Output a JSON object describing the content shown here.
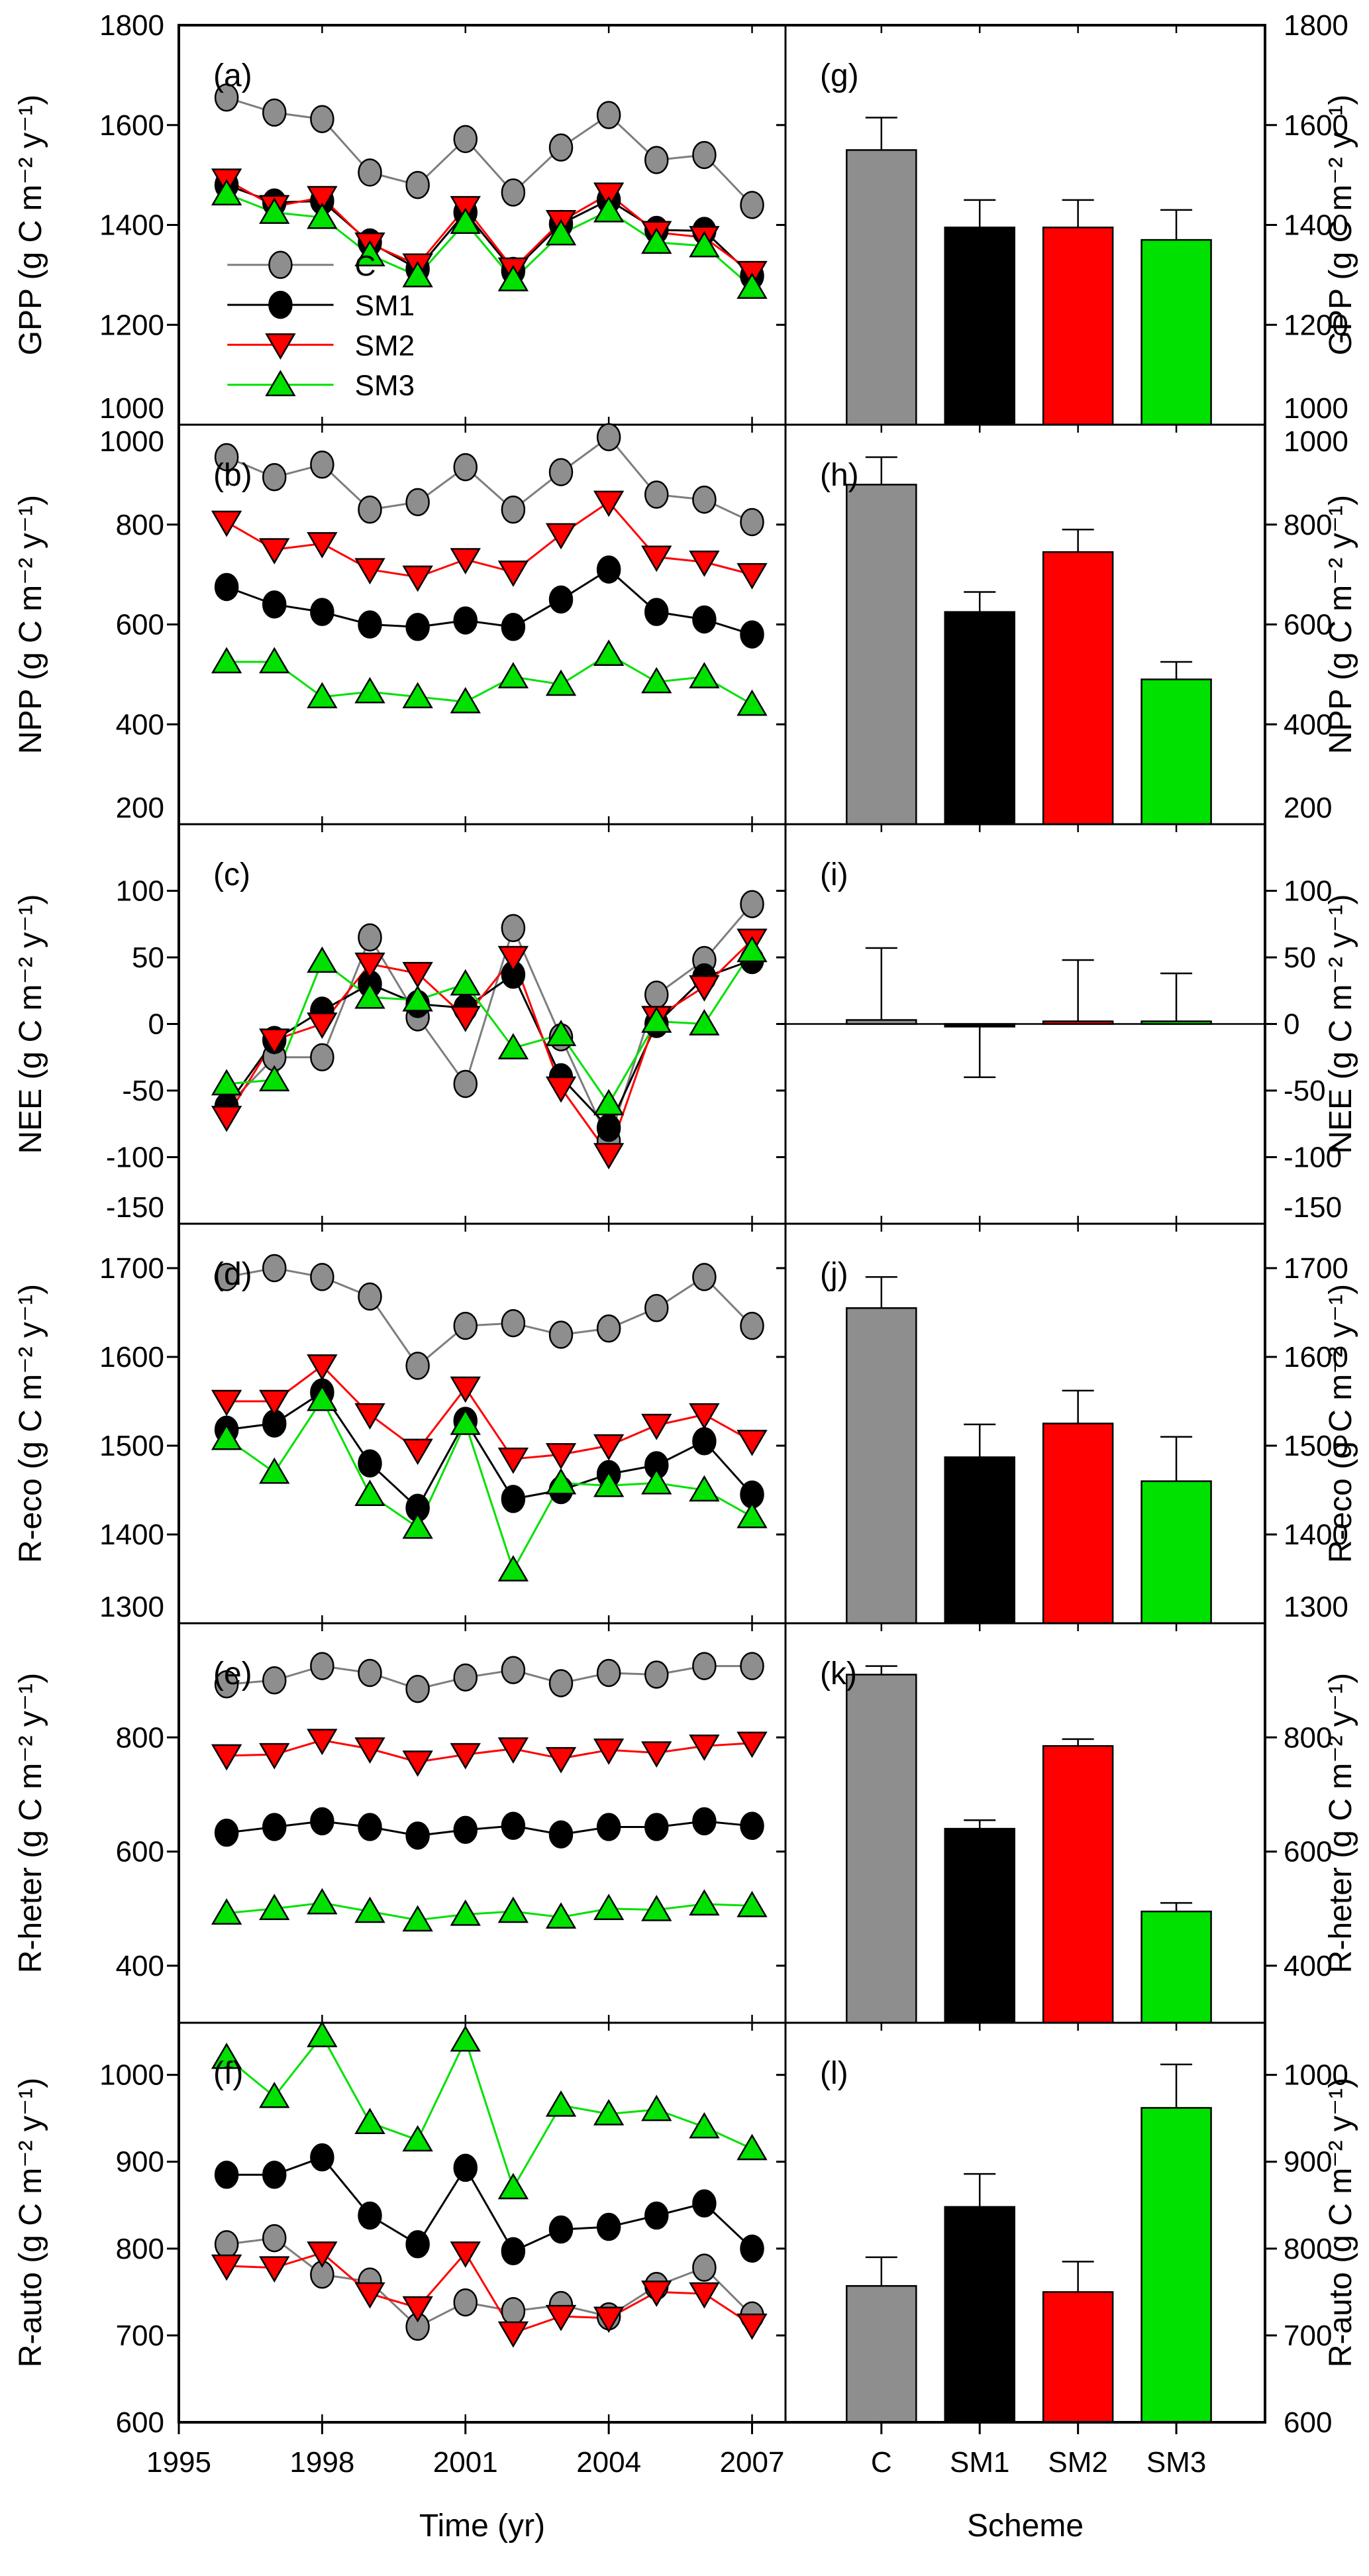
{
  "figure": {
    "description": "Six-variable carbon flux comparison: yearly time series (left column) and scheme means with error bars (right column)",
    "x_axis_label": "Time (yr)",
    "bar_axis_label": "Scheme",
    "legend": [
      "C",
      "SM1",
      "SM2",
      "SM3"
    ]
  },
  "chart_data": {
    "type": "multi-panel",
    "years": [
      1996,
      1997,
      1998,
      1999,
      2000,
      2001,
      2002,
      2003,
      2004,
      2005,
      2006,
      2007
    ],
    "x_ticks": [
      1995,
      1998,
      2001,
      2004,
      2007
    ],
    "x_range": [
      1995,
      2007.7
    ],
    "xlabel": "Time (yr)",
    "bar_xlabel": "Scheme",
    "categories": [
      "C",
      "SM1",
      "SM2",
      "SM3"
    ],
    "series_meta": [
      {
        "name": "C",
        "marker": "circle",
        "fill": "#8e8e8e",
        "line": "#7d7d7d"
      },
      {
        "name": "SM1",
        "marker": "circle",
        "fill": "#000000",
        "line": "#000000"
      },
      {
        "name": "SM2",
        "marker": "triangle-down",
        "fill": "#ff0000",
        "line": "#ff0000"
      },
      {
        "name": "SM3",
        "marker": "triangle-up",
        "fill": "#00e100",
        "line": "#00e100"
      }
    ],
    "legend_in_panel": 0,
    "rows": [
      {
        "id": "GPP",
        "letter_line": "(a)",
        "letter_bar": "(g)",
        "ylabel": "GPP (g C m⁻² y⁻¹)",
        "ylim": [
          1000,
          1800
        ],
        "yticks": [
          1000,
          1200,
          1400,
          1600,
          1800
        ],
        "series": {
          "C": [
            1655,
            1625,
            1612,
            1505,
            1480,
            1572,
            1465,
            1555,
            1620,
            1530,
            1540,
            1440
          ],
          "SM1": [
            1480,
            1445,
            1448,
            1365,
            1312,
            1425,
            1308,
            1402,
            1450,
            1390,
            1388,
            1298
          ],
          "SM2": [
            1490,
            1437,
            1455,
            1362,
            1320,
            1435,
            1312,
            1407,
            1462,
            1385,
            1375,
            1305
          ],
          "SM3": [
            1462,
            1425,
            1415,
            1340,
            1298,
            1405,
            1290,
            1382,
            1428,
            1365,
            1358,
            1275
          ]
        },
        "bars": {
          "C": {
            "v": 1550,
            "e": 65
          },
          "SM1": {
            "v": 1395,
            "e": 55
          },
          "SM2": {
            "v": 1395,
            "e": 55
          },
          "SM3": {
            "v": 1370,
            "e": 60
          }
        }
      },
      {
        "id": "NPP",
        "letter_line": "(b)",
        "letter_bar": "(h)",
        "ylabel": "NPP (g C m⁻² y⁻¹)",
        "ylim": [
          200,
          1000
        ],
        "yticks": [
          200,
          400,
          600,
          800,
          1000
        ],
        "series": {
          "C": [
            935,
            895,
            920,
            830,
            845,
            915,
            830,
            905,
            975,
            860,
            850,
            805
          ],
          "SM1": [
            675,
            640,
            625,
            600,
            595,
            608,
            595,
            650,
            710,
            625,
            610,
            580
          ],
          "SM2": [
            805,
            750,
            762,
            710,
            695,
            730,
            705,
            780,
            845,
            735,
            725,
            700
          ],
          "SM3": [
            525,
            525,
            455,
            465,
            455,
            445,
            495,
            480,
            540,
            485,
            495,
            440
          ]
        },
        "bars": {
          "C": {
            "v": 880,
            "e": 55
          },
          "SM1": {
            "v": 625,
            "e": 40
          },
          "SM2": {
            "v": 745,
            "e": 45
          },
          "SM3": {
            "v": 490,
            "e": 35
          }
        }
      },
      {
        "id": "NEE",
        "letter_line": "(c)",
        "letter_bar": "(i)",
        "ylabel": "NEE (g C m⁻² y⁻¹)",
        "ylim": [
          -150,
          150
        ],
        "yticks": [
          -150,
          -100,
          -50,
          0,
          50,
          100
        ],
        "zero_line_bar": true,
        "series": {
          "C": [
            -62,
            -25,
            -25,
            65,
            5,
            -45,
            72,
            -10,
            -88,
            22,
            48,
            90
          ],
          "SM1": [
            -62,
            -12,
            10,
            30,
            15,
            12,
            37,
            -40,
            -78,
            0,
            35,
            48
          ],
          "SM2": [
            -70,
            -12,
            0,
            45,
            38,
            5,
            50,
            -48,
            -98,
            5,
            28,
            63
          ],
          "SM3": [
            -45,
            -42,
            47,
            20,
            18,
            30,
            -18,
            -8,
            -60,
            2,
            0,
            55
          ]
        },
        "bars": {
          "C": {
            "v": 3,
            "e": 54
          },
          "SM1": {
            "v": -2,
            "e": -38
          },
          "SM2": {
            "v": 2,
            "e": 46
          },
          "SM3": {
            "v": 2,
            "e": 36
          }
        }
      },
      {
        "id": "R-eco",
        "letter_line": "(d)",
        "letter_bar": "(j)",
        "ylabel": "R-eco (g C m⁻² y⁻¹)",
        "ylim": [
          1300,
          1750
        ],
        "yticks": [
          1300,
          1400,
          1500,
          1600,
          1700
        ],
        "series": {
          "C": [
            1690,
            1700,
            1690,
            1668,
            1590,
            1635,
            1638,
            1625,
            1632,
            1655,
            1690,
            1635
          ],
          "SM1": [
            1518,
            1525,
            1560,
            1480,
            1430,
            1528,
            1440,
            1450,
            1468,
            1478,
            1505,
            1445
          ],
          "SM2": [
            1550,
            1550,
            1590,
            1535,
            1495,
            1565,
            1485,
            1490,
            1500,
            1523,
            1535,
            1505
          ],
          "SM3": [
            1508,
            1470,
            1552,
            1445,
            1408,
            1525,
            1360,
            1458,
            1455,
            1458,
            1450,
            1420
          ]
        },
        "bars": {
          "C": {
            "v": 1655,
            "e": 35
          },
          "SM1": {
            "v": 1487,
            "e": 37
          },
          "SM2": {
            "v": 1525,
            "e": 37
          },
          "SM3": {
            "v": 1460,
            "e": 50
          }
        }
      },
      {
        "id": "R-heter",
        "letter_line": "(e)",
        "letter_bar": "(k)",
        "ylabel": "R-heter (g C m⁻² y⁻¹)",
        "ylim": [
          300,
          1000
        ],
        "yticks": [
          400,
          600,
          800
        ],
        "series": {
          "C": [
            893,
            900,
            925,
            913,
            885,
            905,
            918,
            895,
            913,
            910,
            925,
            925
          ],
          "SM1": [
            633,
            643,
            653,
            643,
            628,
            638,
            645,
            630,
            643,
            643,
            653,
            645
          ],
          "SM2": [
            768,
            770,
            795,
            780,
            757,
            770,
            780,
            763,
            778,
            773,
            785,
            790
          ],
          "SM3": [
            492,
            500,
            510,
            495,
            480,
            490,
            495,
            485,
            500,
            498,
            508,
            505
          ]
        },
        "bars": {
          "C": {
            "v": 910,
            "e": 15
          },
          "SM1": {
            "v": 640,
            "e": 15
          },
          "SM2": {
            "v": 785,
            "e": 12
          },
          "SM3": {
            "v": 495,
            "e": 15
          }
        }
      },
      {
        "id": "R-auto",
        "letter_line": "(f)",
        "letter_bar": "(l)",
        "ylabel": "R-auto (g C m⁻² y⁻¹)",
        "ylim": [
          600,
          1060
        ],
        "yticks": [
          600,
          700,
          800,
          900,
          1000
        ],
        "series": {
          "C": [
            805,
            812,
            770,
            762,
            710,
            738,
            728,
            735,
            722,
            757,
            778,
            723
          ],
          "SM1": [
            885,
            885,
            905,
            838,
            805,
            893,
            797,
            822,
            825,
            838,
            852,
            800
          ],
          "SM2": [
            780,
            778,
            795,
            748,
            732,
            795,
            703,
            722,
            720,
            750,
            748,
            712
          ],
          "SM3": [
            1020,
            975,
            1045,
            945,
            925,
            1040,
            870,
            965,
            955,
            960,
            940,
            915
          ]
        },
        "bars": {
          "C": {
            "v": 757,
            "e": 33
          },
          "SM1": {
            "v": 848,
            "e": 38
          },
          "SM2": {
            "v": 750,
            "e": 35
          },
          "SM3": {
            "v": 962,
            "e": 50
          }
        }
      }
    ]
  }
}
